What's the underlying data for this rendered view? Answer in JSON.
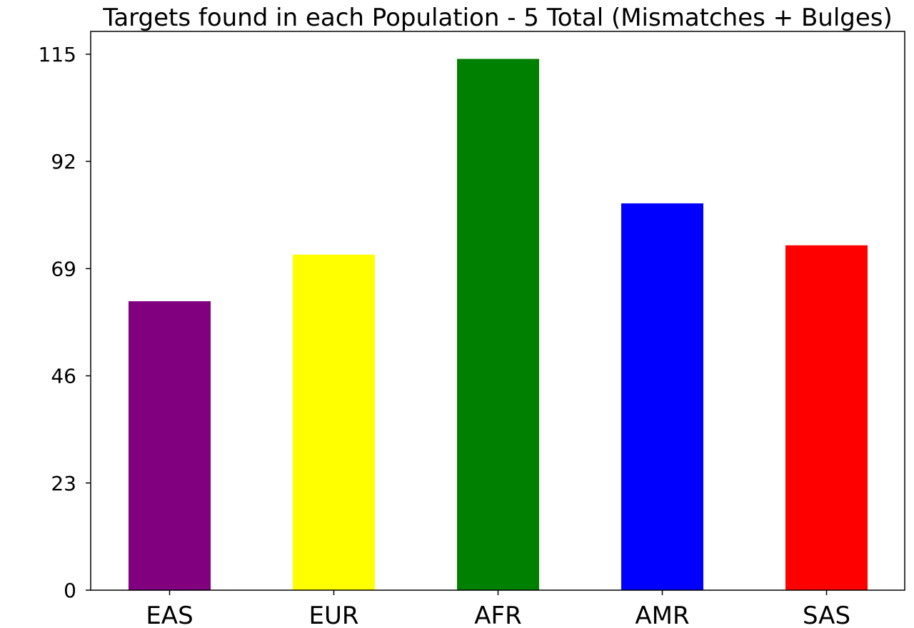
{
  "chart_data": {
    "type": "bar",
    "title": "Targets found in each Population - 5 Total (Mismatches + Bulges)",
    "xlabel": "",
    "ylabel": "",
    "categories": [
      "EAS",
      "EUR",
      "AFR",
      "AMR",
      "SAS"
    ],
    "values": [
      62,
      72,
      114,
      83,
      74
    ],
    "colors": [
      "#800080",
      "#ffff00",
      "#008000",
      "#0000ff",
      "#ff0000"
    ],
    "yticks": [
      0,
      23,
      46,
      69,
      92,
      115
    ],
    "ylim": [
      0,
      115
    ],
    "grid": false,
    "legend": "none"
  }
}
